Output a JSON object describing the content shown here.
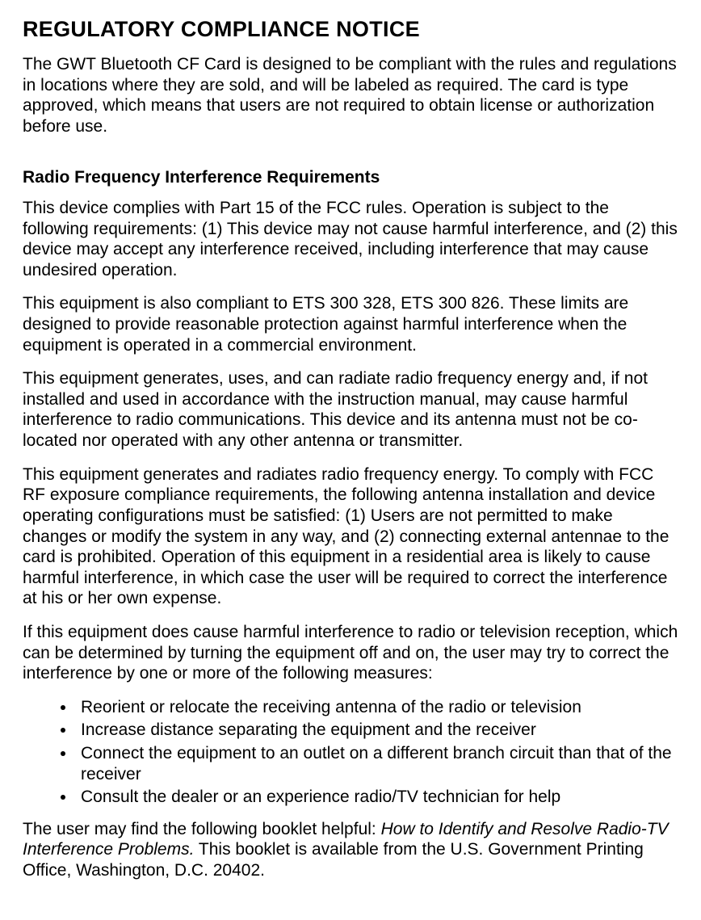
{
  "title": "REGULATORY COMPLIANCE NOTICE",
  "intro": "The GWT Bluetooth CF Card is designed to be compliant with the rules and regulations in locations where they are sold, and will be labeled as required.  The card is type approved, which means that users are not required to obtain license or authorization before use.",
  "section1_heading": "Radio Frequency Interference Requirements",
  "p1": "This device complies with Part 15 of the FCC rules.  Operation is subject to the following requirements:  (1) This device may not cause harmful interference, and (2) this device may accept any interference received, including interference that may cause undesired operation.",
  "p2": "This equipment is also compliant to ETS 300 328, ETS 300 826.  These limits are designed to provide reasonable protection against harmful interference when the equipment is operated in a commercial environment.",
  "p3": "This equipment generates, uses, and can radiate radio frequency energy and, if not installed and used in accordance with the instruction manual, may cause harmful interference to radio communications.  This device and its antenna must not be co-located nor operated with any other antenna or transmitter.",
  "p4": "This equipment generates and radiates radio frequency energy.  To comply with FCC RF exposure compliance requirements, the following antenna installation and device operating configurations must be satisfied: (1) Users are not permitted to make changes or modify the system in any way, and (2) connecting external antennae to the card is prohibited.  Operation of this equipment in a residential area is likely to cause harmful interference, in which case the user will be required to correct the interference at his or her own expense.",
  "p5": "If this equipment does cause harmful interference to radio or television reception, which can be determined by turning the equipment off and on, the user may try to correct the interference by one or more of the following measures:",
  "bullets": [
    "Reorient or relocate the receiving antenna of the radio or television",
    "Increase distance separating the equipment and the receiver",
    "Connect the equipment to an outlet on a different branch circuit than that of the receiver",
    "Consult the dealer or an experience radio/TV technician for help"
  ],
  "closing_pre": "The user may find the following booklet helpful:  ",
  "closing_italic": "How to Identify and Resolve Radio-TV Interference Problems.",
  "closing_post": "  This booklet is available from the U.S. Government Printing Office, Washington, D.C. 20402."
}
